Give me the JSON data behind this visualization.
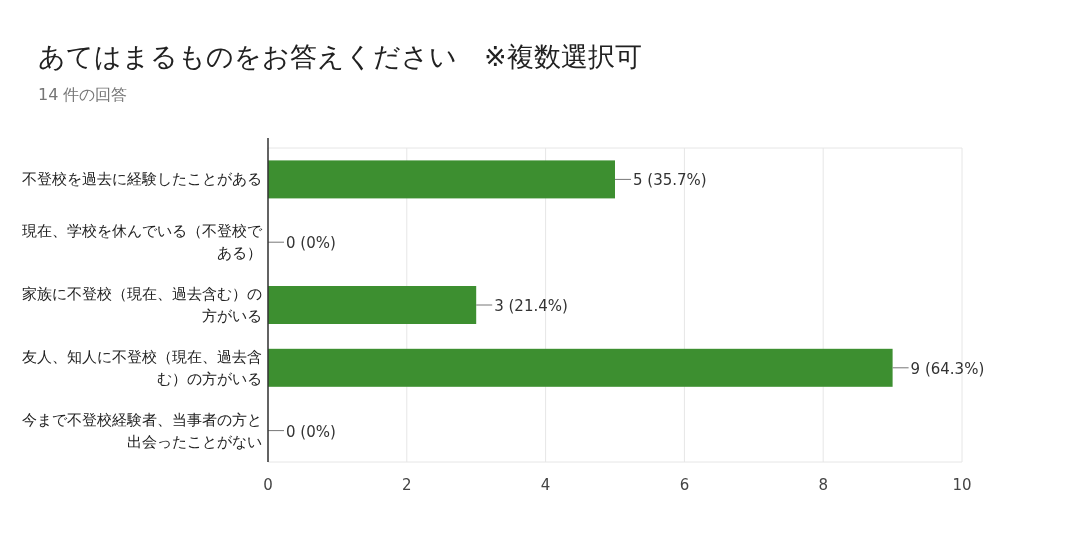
{
  "chart_data": {
    "type": "bar",
    "orientation": "horizontal",
    "title": "あてはまるものをお答えください　※複数選択可",
    "subtitle": "14 件の回答",
    "categories": [
      "不登校を過去に経験したことがある",
      "現在、学校を休んでいる（不登校である）",
      "家族に不登校（現在、過去含む）の方がいる",
      "友人、知人に不登校（現在、過去含む）の方がいる",
      "今まで不登校経験者、当事者の方と出会ったことがない"
    ],
    "values": [
      5,
      0,
      3,
      9,
      0
    ],
    "value_labels": [
      "5 (35.7%)",
      "0 (0%)",
      "3 (21.4%)",
      "9 (64.3%)",
      "0 (0%)"
    ],
    "color": "#3d8f30",
    "xlim": [
      0,
      10
    ],
    "xticks": [
      0,
      2,
      4,
      6,
      8,
      10
    ],
    "grid": "x"
  }
}
